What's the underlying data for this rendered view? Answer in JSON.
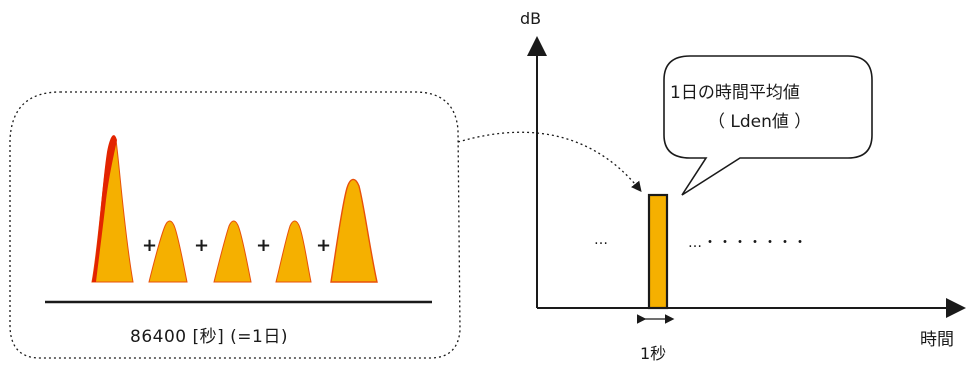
{
  "left_panel": {
    "total_label": "86400 [秒] (=1日)",
    "plus_signs": [
      "+",
      "+",
      "+",
      "+"
    ]
  },
  "chart": {
    "y_axis_label": "dB",
    "x_axis_label": "時間",
    "bar_label": "1秒",
    "dots_left": "…",
    "dots_right": "…・・・・・・・",
    "callout_line1": "1日の時間平均値",
    "callout_line2": "（ Lden値 ）"
  },
  "colors": {
    "peak_fill": "#f5b000",
    "peak_edge": "#e8500a",
    "peak_edge_strong": "#e32400",
    "bar_fill": "#f5b000",
    "outline": "#1a1a1a"
  }
}
